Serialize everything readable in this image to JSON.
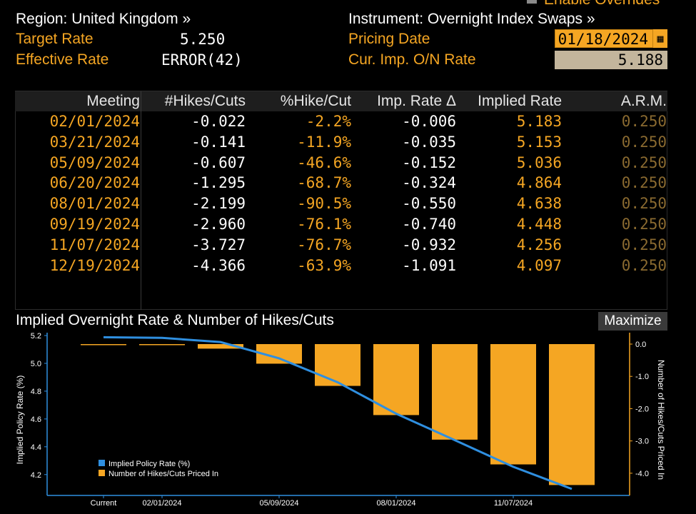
{
  "header": {
    "region_label": "Region: United Kingdom »",
    "instrument_label": "Instrument: Overnight Index Swaps »",
    "overrides_label": "Enable Overrides",
    "target_rate_label": "Target Rate",
    "target_rate_value": "5.250",
    "effective_rate_label": "Effective Rate",
    "effective_rate_value": "ERROR(42)",
    "pricing_date_label": "Pricing Date",
    "pricing_date_value": "01/18/2024",
    "onrate_label": "Cur. Imp. O/N Rate",
    "onrate_value": "5.188"
  },
  "table": {
    "columns": [
      "Meeting",
      "#Hikes/Cuts",
      "%Hike/Cut",
      "Imp. Rate Δ",
      "Implied Rate",
      "A.R.M."
    ],
    "rows": [
      [
        "02/01/2024",
        "-0.022",
        "-2.2%",
        "-0.006",
        "5.183",
        "0.250"
      ],
      [
        "03/21/2024",
        "-0.141",
        "-11.9%",
        "-0.035",
        "5.153",
        "0.250"
      ],
      [
        "05/09/2024",
        "-0.607",
        "-46.6%",
        "-0.152",
        "5.036",
        "0.250"
      ],
      [
        "06/20/2024",
        "-1.295",
        "-68.7%",
        "-0.324",
        "4.864",
        "0.250"
      ],
      [
        "08/01/2024",
        "-2.199",
        "-90.5%",
        "-0.550",
        "4.638",
        "0.250"
      ],
      [
        "09/19/2024",
        "-2.960",
        "-76.1%",
        "-0.740",
        "4.448",
        "0.250"
      ],
      [
        "11/07/2024",
        "-3.727",
        "-76.7%",
        "-0.932",
        "4.256",
        "0.250"
      ],
      [
        "12/19/2024",
        "-4.366",
        "-63.9%",
        "-1.091",
        "4.097",
        "0.250"
      ]
    ]
  },
  "chart": {
    "title": "Implied Overnight Rate & Number of Hikes/Cuts",
    "maximize_label": "Maximize"
  },
  "colors": {
    "accent_orange": "#f5a623",
    "line_blue": "#2f8fe0",
    "background": "#000000"
  },
  "chart_data": {
    "type": "bar",
    "categories": [
      "Current",
      "02/01/2024",
      "03/21/2024",
      "05/09/2024",
      "06/20/2024",
      "08/01/2024",
      "09/19/2024",
      "11/07/2024",
      "12/19/2024"
    ],
    "x_tick_labels": [
      "Current",
      "02/01/2024",
      "05/09/2024",
      "08/01/2024",
      "11/07/2024"
    ],
    "series": [
      {
        "name": "Implied Policy Rate (%)",
        "type": "line",
        "axis": "left",
        "values": [
          5.188,
          5.183,
          5.153,
          5.036,
          4.864,
          4.638,
          4.448,
          4.256,
          4.097
        ]
      },
      {
        "name": "Number of Hikes/Cuts Priced In",
        "type": "bar",
        "axis": "right",
        "values": [
          0,
          -0.022,
          -0.141,
          -0.607,
          -1.295,
          -2.199,
          -2.96,
          -3.727,
          -4.366
        ]
      }
    ],
    "ylabel_left": "Implied Policy Rate (%)",
    "ylabel_right": "Number of Hikes/Cuts Priced In",
    "ylim_left": [
      4.05,
      5.2
    ],
    "yticks_left": [
      "5.2",
      "5.0",
      "4.8",
      "4.6",
      "4.4",
      "4.2"
    ],
    "ylim_right": [
      -4.6,
      0
    ],
    "yticks_right": [
      "0.0",
      "-1.0",
      "-2.0",
      "-3.0",
      "-4.0"
    ],
    "legend_position": "bottom-left",
    "grid": false
  }
}
